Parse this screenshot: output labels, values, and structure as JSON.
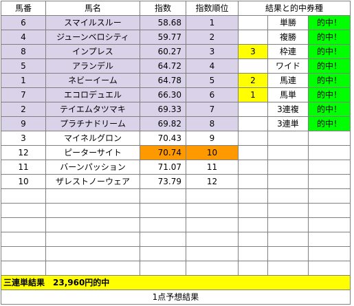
{
  "headers": {
    "horse_no": "馬番",
    "horse_name": "馬名",
    "index": "指数",
    "index_rank": "指数順位",
    "result_ticket": "結果と的中券種"
  },
  "rows": [
    {
      "no": "6",
      "name": "スマイルスルー",
      "index": "58.68",
      "rank": "1",
      "result": "",
      "ticket": "単勝",
      "hit": "的中！"
    },
    {
      "no": "4",
      "name": "ジューンベロシティ",
      "index": "59.77",
      "rank": "2",
      "result": "",
      "ticket": "複勝",
      "hit": "的中！"
    },
    {
      "no": "8",
      "name": "インプレス",
      "index": "60.27",
      "rank": "3",
      "result": "3",
      "ticket": "枠連",
      "hit": "的中！"
    },
    {
      "no": "5",
      "name": "アランデル",
      "index": "64.72",
      "rank": "4",
      "result": "",
      "ticket": "ワイド",
      "hit": "的中！"
    },
    {
      "no": "1",
      "name": "ネビーイーム",
      "index": "64.78",
      "rank": "5",
      "result": "2",
      "ticket": "馬連",
      "hit": "的中！"
    },
    {
      "no": "7",
      "name": "エコロデュエル",
      "index": "66.30",
      "rank": "6",
      "result": "1",
      "ticket": "馬単",
      "hit": "的中！"
    },
    {
      "no": "2",
      "name": "テイエムタツマキ",
      "index": "69.33",
      "rank": "7",
      "result": "",
      "ticket": "3連複",
      "hit": "的中！"
    },
    {
      "no": "9",
      "name": "プラチナドリーム",
      "index": "69.82",
      "rank": "8",
      "result": "",
      "ticket": "3連単",
      "hit": "的中！"
    },
    {
      "no": "3",
      "name": "マイネルグロン",
      "index": "70.43",
      "rank": "9",
      "result": "",
      "ticket": "",
      "hit": ""
    },
    {
      "no": "12",
      "name": "ピーターサイト",
      "index": "70.74",
      "rank": "10",
      "result": "",
      "ticket": "",
      "hit": ""
    },
    {
      "no": "11",
      "name": "バーンパッション",
      "index": "71.07",
      "rank": "11",
      "result": "",
      "ticket": "",
      "hit": ""
    },
    {
      "no": "10",
      "name": "ザレストノーウェア",
      "index": "73.79",
      "rank": "12",
      "result": "",
      "ticket": "",
      "hit": ""
    }
  ],
  "empty_rows": 6,
  "summary": "三連単結果　23,960円的中",
  "footer": "1点予想結果",
  "colors": {
    "top_pick": "#d9d2e9",
    "result_mark": "#ffff00",
    "hit": "#00ff00",
    "alert": "#ff9900",
    "summary": "#ffff00"
  }
}
